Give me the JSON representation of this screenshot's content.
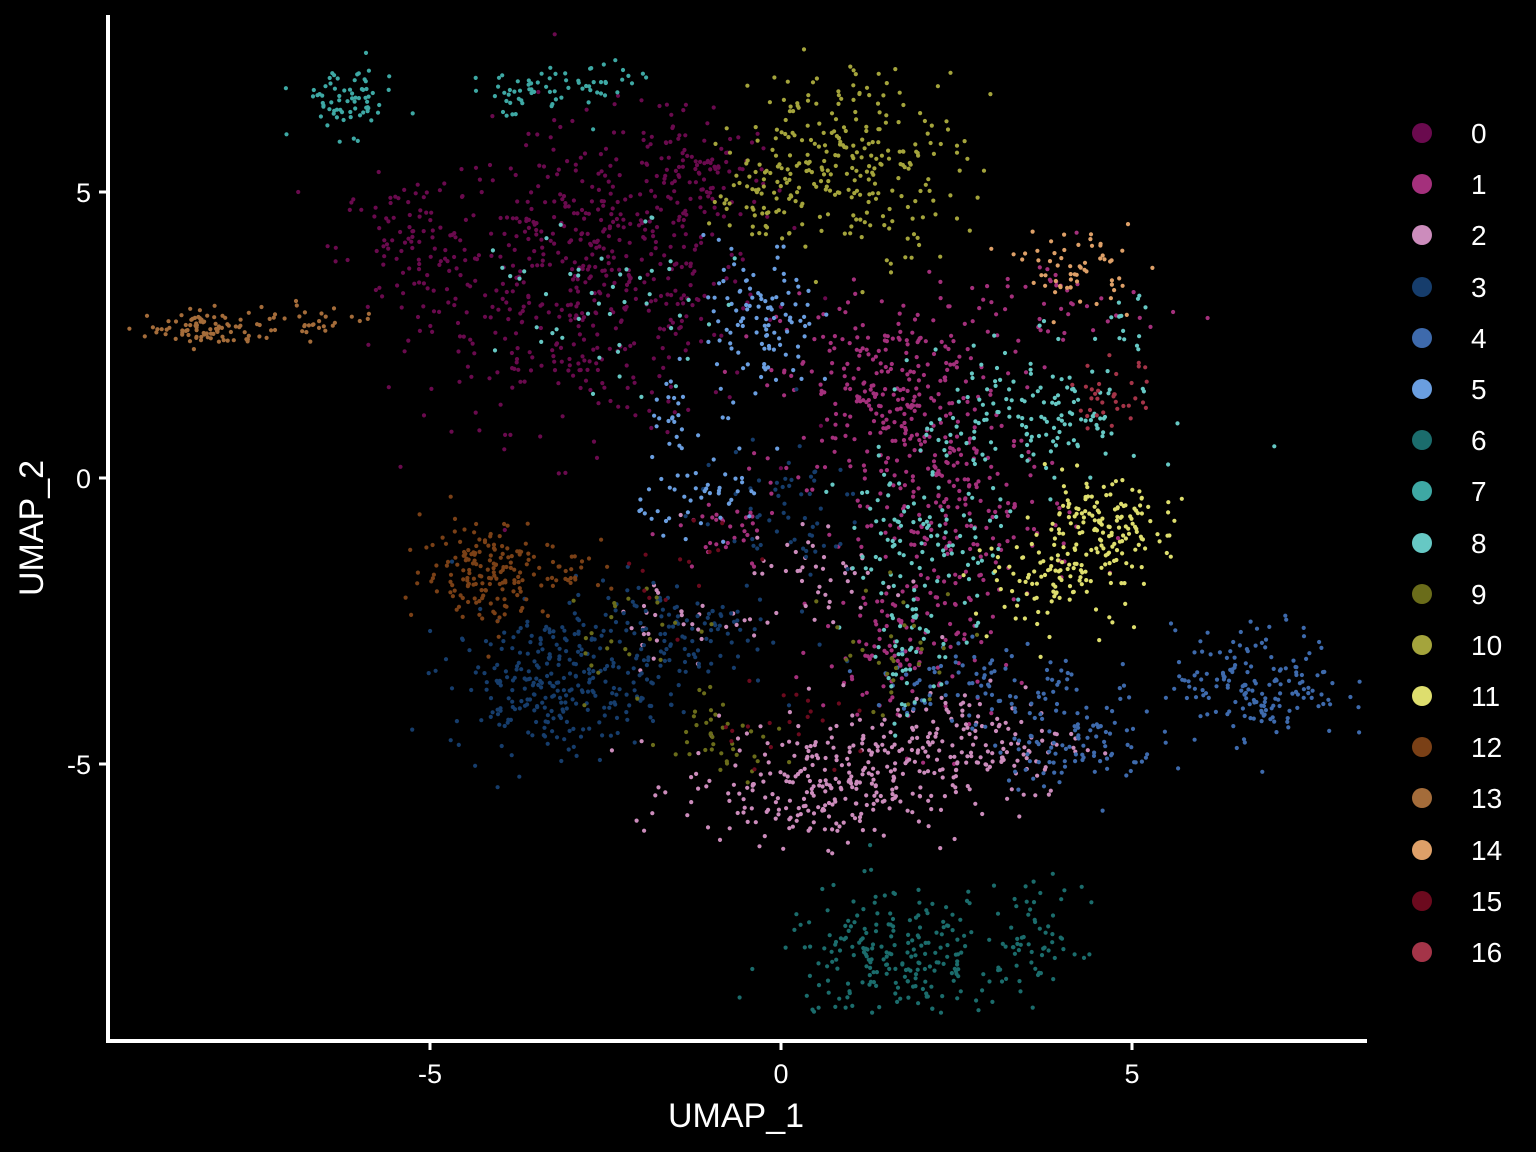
{
  "chart_data": {
    "type": "scatter",
    "title": "",
    "xlabel": "UMAP_1",
    "ylabel": "UMAP_2",
    "xlim": [
      -9.6,
      8.3
    ],
    "ylim": [
      -9.5,
      8.2
    ],
    "x_ticks": [
      -5,
      0,
      5
    ],
    "x_tick_labels": [
      "-5",
      "0",
      "5"
    ],
    "y_ticks": [
      -5,
      0,
      5
    ],
    "y_tick_labels": [
      "-5",
      "0",
      "5"
    ],
    "grid": false,
    "background": "#000000",
    "legend_position": "right",
    "point_size_note": "small dots",
    "series": [
      {
        "name": "0",
        "color": "#6a0a4e",
        "clusters": [
          {
            "x": -2.7,
            "y": 3.5,
            "sx": 1.2,
            "sy": 1.3,
            "n": 520
          },
          {
            "x": -5.3,
            "y": 4.0,
            "sx": 0.5,
            "sy": 0.6,
            "n": 90
          },
          {
            "x": -1.3,
            "y": 5.4,
            "sx": 0.6,
            "sy": 0.6,
            "n": 90
          }
        ]
      },
      {
        "name": "1",
        "color": "#a4307c",
        "clusters": [
          {
            "x": 1.6,
            "y": 1.5,
            "sx": 0.8,
            "sy": 0.9,
            "n": 300
          },
          {
            "x": 2.6,
            "y": -0.8,
            "sx": 0.8,
            "sy": 0.8,
            "n": 170
          },
          {
            "x": 1.8,
            "y": -3.0,
            "sx": 0.6,
            "sy": 0.8,
            "n": 110
          },
          {
            "x": -0.8,
            "y": -1.0,
            "sx": 0.4,
            "sy": 0.4,
            "n": 35
          },
          {
            "x": 4.0,
            "y": 3.0,
            "sx": 0.7,
            "sy": 0.5,
            "n": 40
          }
        ]
      },
      {
        "name": "2",
        "color": "#cc8cbc",
        "clusters": [
          {
            "x": 0.6,
            "y": -5.4,
            "sx": 1.0,
            "sy": 0.5,
            "n": 260
          },
          {
            "x": 2.6,
            "y": -4.6,
            "sx": 0.9,
            "sy": 0.5,
            "n": 160
          },
          {
            "x": 0.6,
            "y": -1.7,
            "sx": 0.6,
            "sy": 0.5,
            "n": 50
          },
          {
            "x": -1.5,
            "y": -2.5,
            "sx": 0.5,
            "sy": 0.4,
            "n": 30
          }
        ]
      },
      {
        "name": "3",
        "color": "#163d6c",
        "clusters": [
          {
            "x": -3.3,
            "y": -3.6,
            "sx": 0.7,
            "sy": 0.6,
            "n": 260
          },
          {
            "x": -1.7,
            "y": -2.7,
            "sx": 0.8,
            "sy": 0.5,
            "n": 130
          },
          {
            "x": 0.0,
            "y": -0.6,
            "sx": 0.6,
            "sy": 0.6,
            "n": 60
          }
        ]
      },
      {
        "name": "4",
        "color": "#3e6aac",
        "clusters": [
          {
            "x": 6.8,
            "y": -3.6,
            "sx": 0.6,
            "sy": 0.5,
            "n": 170
          },
          {
            "x": 4.2,
            "y": -4.6,
            "sx": 0.6,
            "sy": 0.4,
            "n": 100
          },
          {
            "x": 2.9,
            "y": -3.6,
            "sx": 0.8,
            "sy": 0.4,
            "n": 90
          }
        ]
      },
      {
        "name": "5",
        "color": "#6a9ee0",
        "clusters": [
          {
            "x": -0.3,
            "y": 2.7,
            "sx": 0.4,
            "sy": 0.7,
            "n": 110
          },
          {
            "x": -1.0,
            "y": -0.3,
            "sx": 0.5,
            "sy": 0.3,
            "n": 45
          },
          {
            "x": -1.5,
            "y": 0.9,
            "sx": 0.2,
            "sy": 0.3,
            "n": 22
          }
        ]
      },
      {
        "name": "6",
        "color": "#1b6c6c",
        "clusters": [
          {
            "x": 1.6,
            "y": -8.4,
            "sx": 0.8,
            "sy": 0.6,
            "n": 230
          },
          {
            "x": 3.6,
            "y": -8.1,
            "sx": 0.35,
            "sy": 0.5,
            "n": 60
          }
        ]
      },
      {
        "name": "7",
        "color": "#3ea8a4",
        "clusters": [
          {
            "x": -6.2,
            "y": 6.6,
            "sx": 0.35,
            "sy": 0.3,
            "n": 70
          },
          {
            "x": -2.6,
            "y": 6.9,
            "sx": 0.3,
            "sy": 0.2,
            "n": 30
          },
          {
            "x": -3.7,
            "y": 6.7,
            "sx": 0.4,
            "sy": 0.2,
            "n": 40
          }
        ]
      },
      {
        "name": "8",
        "color": "#66c8c4",
        "clusters": [
          {
            "x": 3.6,
            "y": 1.1,
            "sx": 0.8,
            "sy": 0.6,
            "n": 150
          },
          {
            "x": 2.0,
            "y": -1.2,
            "sx": 0.6,
            "sy": 0.8,
            "n": 110
          },
          {
            "x": 1.8,
            "y": -3.2,
            "sx": 0.2,
            "sy": 0.6,
            "n": 40
          },
          {
            "x": -2.4,
            "y": 3.0,
            "sx": 0.8,
            "sy": 0.7,
            "n": 50
          },
          {
            "x": 4.9,
            "y": 2.6,
            "sx": 0.2,
            "sy": 0.3,
            "n": 14
          }
        ]
      },
      {
        "name": "9",
        "color": "#6a6c1a",
        "clusters": [
          {
            "x": -0.8,
            "y": -4.4,
            "sx": 0.4,
            "sy": 0.4,
            "n": 40
          },
          {
            "x": 1.6,
            "y": -3.0,
            "sx": 0.5,
            "sy": 0.7,
            "n": 30
          },
          {
            "x": -2.0,
            "y": -2.8,
            "sx": 0.6,
            "sy": 0.5,
            "n": 25
          }
        ]
      },
      {
        "name": "10",
        "color": "#a4a43c",
        "clusters": [
          {
            "x": 1.0,
            "y": 5.6,
            "sx": 0.8,
            "sy": 0.8,
            "n": 260
          },
          {
            "x": -0.4,
            "y": 4.9,
            "sx": 0.3,
            "sy": 0.4,
            "n": 40
          }
        ]
      },
      {
        "name": "11",
        "color": "#dede6e",
        "clusters": [
          {
            "x": 4.5,
            "y": -0.9,
            "sx": 0.5,
            "sy": 0.4,
            "n": 150
          },
          {
            "x": 3.9,
            "y": -1.8,
            "sx": 0.6,
            "sy": 0.4,
            "n": 90
          }
        ]
      },
      {
        "name": "12",
        "color": "#7a4016",
        "clusters": [
          {
            "x": -4.2,
            "y": -1.6,
            "sx": 0.45,
            "sy": 0.45,
            "n": 160
          },
          {
            "x": -3.1,
            "y": -1.6,
            "sx": 0.4,
            "sy": 0.3,
            "n": 30
          }
        ]
      },
      {
        "name": "13",
        "color": "#a46c3a",
        "clusters": [
          {
            "x": -8.2,
            "y": 2.6,
            "sx": 0.4,
            "sy": 0.15,
            "n": 80
          },
          {
            "x": -6.8,
            "y": 2.7,
            "sx": 0.6,
            "sy": 0.15,
            "n": 40
          }
        ]
      },
      {
        "name": "14",
        "color": "#dea068",
        "clusters": [
          {
            "x": 4.2,
            "y": 3.7,
            "sx": 0.4,
            "sy": 0.35,
            "n": 60
          }
        ]
      },
      {
        "name": "15",
        "color": "#6c0a1e",
        "clusters": [
          {
            "x": 0.2,
            "y": -4.3,
            "sx": 0.6,
            "sy": 0.4,
            "n": 20
          },
          {
            "x": -1.5,
            "y": -1.6,
            "sx": 0.6,
            "sy": 0.5,
            "n": 15
          }
        ]
      },
      {
        "name": "16",
        "color": "#a43448",
        "clusters": [
          {
            "x": 4.7,
            "y": 1.4,
            "sx": 0.3,
            "sy": 0.3,
            "n": 35
          }
        ]
      }
    ]
  }
}
